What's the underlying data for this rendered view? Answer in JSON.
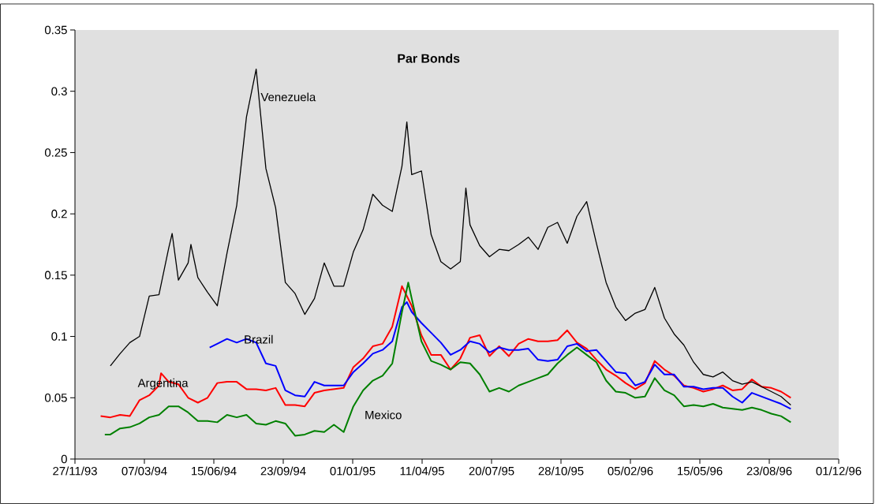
{
  "chart_data": {
    "type": "line",
    "title": "Par Bonds",
    "line_style": "solid",
    "xlim": [
      "1993-11-27",
      "1996-12-01"
    ],
    "xticks": [
      {
        "value": "1993-11-27",
        "label": "27/11/93"
      },
      {
        "value": "1994-03-07",
        "label": "07/03/94"
      },
      {
        "value": "1994-06-15",
        "label": "15/06/94"
      },
      {
        "value": "1994-09-23",
        "label": "23/09/94"
      },
      {
        "value": "1995-01-01",
        "label": "01/01/95"
      },
      {
        "value": "1995-04-11",
        "label": "11/04/95"
      },
      {
        "value": "1995-07-20",
        "label": "20/07/95"
      },
      {
        "value": "1995-10-28",
        "label": "28/10/95"
      },
      {
        "value": "1996-02-05",
        "label": "05/02/96"
      },
      {
        "value": "1996-05-15",
        "label": "15/05/96"
      },
      {
        "value": "1996-08-23",
        "label": "23/08/96"
      },
      {
        "value": "1996-12-01",
        "label": "01/12/96"
      }
    ],
    "ylim": [
      0,
      0.35
    ],
    "yticks": [
      0,
      0.05,
      0.1,
      0.15,
      0.2,
      0.25,
      0.3,
      0.35
    ],
    "series": [
      {
        "name": "Argentina",
        "color": "#ff0000",
        "x": [
          "1994-01-03",
          "1994-01-17",
          "1994-01-31",
          "1994-02-14",
          "1994-02-28",
          "1994-03-14",
          "1994-03-28",
          "1994-03-31",
          "1994-04-11",
          "1994-04-25",
          "1994-05-09",
          "1994-05-23",
          "1994-06-06",
          "1994-06-20",
          "1994-07-04",
          "1994-07-18",
          "1994-08-01",
          "1994-08-15",
          "1994-08-29",
          "1994-09-12",
          "1994-09-26",
          "1994-10-10",
          "1994-10-24",
          "1994-11-07",
          "1994-11-21",
          "1994-12-05",
          "1994-12-19",
          "1995-01-02",
          "1995-01-16",
          "1995-01-30",
          "1995-02-13",
          "1995-02-27",
          "1995-03-13",
          "1995-03-27",
          "1995-04-10",
          "1995-04-24",
          "1995-05-08",
          "1995-05-22",
          "1995-06-05",
          "1995-06-19",
          "1995-07-03",
          "1995-07-17",
          "1995-07-31",
          "1995-08-14",
          "1995-08-28",
          "1995-09-11",
          "1995-09-25",
          "1995-10-09",
          "1995-10-23",
          "1995-11-06",
          "1995-11-20",
          "1995-12-04",
          "1995-12-18",
          "1996-01-01",
          "1996-01-15",
          "1996-01-29",
          "1996-02-12",
          "1996-02-26",
          "1996-03-11",
          "1996-03-25",
          "1996-04-08",
          "1996-04-22",
          "1996-05-06",
          "1996-05-20",
          "1996-06-03",
          "1996-06-17",
          "1996-07-01",
          "1996-07-15",
          "1996-07-29",
          "1996-08-12",
          "1996-08-26",
          "1996-09-09",
          "1996-09-23"
        ],
        "values": [
          0.035,
          0.034,
          0.036,
          0.035,
          0.048,
          0.052,
          0.06,
          0.07,
          0.063,
          0.061,
          0.05,
          0.046,
          0.05,
          0.062,
          0.063,
          0.063,
          0.057,
          0.057,
          0.056,
          0.058,
          0.044,
          0.044,
          0.043,
          0.054,
          0.056,
          0.057,
          0.058,
          0.075,
          0.082,
          0.092,
          0.094,
          0.108,
          0.141,
          0.125,
          0.101,
          0.085,
          0.085,
          0.073,
          0.082,
          0.099,
          0.101,
          0.084,
          0.092,
          0.084,
          0.094,
          0.098,
          0.096,
          0.096,
          0.097,
          0.105,
          0.095,
          0.09,
          0.081,
          0.073,
          0.068,
          0.062,
          0.057,
          0.062,
          0.08,
          0.073,
          0.068,
          0.06,
          0.058,
          0.055,
          0.057,
          0.06,
          0.056,
          0.057,
          0.065,
          0.059,
          0.058,
          0.055,
          0.05
        ]
      },
      {
        "name": "Brazil",
        "color": "#0000ff",
        "x": [
          "1994-06-09",
          "1994-06-20",
          "1994-07-04",
          "1994-07-18",
          "1994-08-01",
          "1994-08-15",
          "1994-08-29",
          "1994-09-12",
          "1994-09-26",
          "1994-10-10",
          "1994-10-24",
          "1994-11-07",
          "1994-11-21",
          "1994-12-05",
          "1994-12-19",
          "1995-01-02",
          "1995-01-16",
          "1995-01-30",
          "1995-02-13",
          "1995-02-27",
          "1995-03-13",
          "1995-03-20",
          "1995-03-27",
          "1995-04-10",
          "1995-04-24",
          "1995-05-08",
          "1995-05-22",
          "1995-06-05",
          "1995-06-19",
          "1995-07-03",
          "1995-07-17",
          "1995-07-31",
          "1995-08-14",
          "1995-08-28",
          "1995-09-11",
          "1995-09-25",
          "1995-10-09",
          "1995-10-23",
          "1995-11-06",
          "1995-11-20",
          "1995-12-04",
          "1995-12-18",
          "1996-01-01",
          "1996-01-15",
          "1996-01-29",
          "1996-02-12",
          "1996-02-26",
          "1996-03-11",
          "1996-03-25",
          "1996-04-08",
          "1996-04-22",
          "1996-05-06",
          "1996-05-20",
          "1996-06-03",
          "1996-06-17",
          "1996-07-01",
          "1996-07-15",
          "1996-07-29",
          "1996-08-12",
          "1996-08-26",
          "1996-09-09",
          "1996-09-23"
        ],
        "values": [
          0.091,
          0.094,
          0.098,
          0.095,
          0.098,
          0.095,
          0.078,
          0.076,
          0.056,
          0.052,
          0.051,
          0.063,
          0.06,
          0.06,
          0.06,
          0.071,
          0.078,
          0.086,
          0.089,
          0.096,
          0.124,
          0.128,
          0.12,
          0.111,
          0.103,
          0.095,
          0.085,
          0.089,
          0.096,
          0.094,
          0.087,
          0.091,
          0.089,
          0.089,
          0.09,
          0.081,
          0.08,
          0.081,
          0.092,
          0.094,
          0.088,
          0.089,
          0.08,
          0.071,
          0.07,
          0.06,
          0.063,
          0.077,
          0.069,
          0.069,
          0.059,
          0.059,
          0.057,
          0.058,
          0.058,
          0.051,
          0.046,
          0.054,
          0.051,
          0.048,
          0.045,
          0.041
        ]
      },
      {
        "name": "Mexico",
        "color": "#008000",
        "x": [
          "1994-01-09",
          "1994-01-17",
          "1994-01-31",
          "1994-02-14",
          "1994-02-28",
          "1994-03-14",
          "1994-03-28",
          "1994-04-11",
          "1994-04-25",
          "1994-05-09",
          "1994-05-23",
          "1994-06-06",
          "1994-06-20",
          "1994-07-04",
          "1994-07-18",
          "1994-08-01",
          "1994-08-15",
          "1994-08-29",
          "1994-09-12",
          "1994-09-26",
          "1994-10-10",
          "1994-10-24",
          "1994-11-07",
          "1994-11-21",
          "1994-12-05",
          "1994-12-19",
          "1995-01-02",
          "1995-01-16",
          "1995-01-30",
          "1995-02-13",
          "1995-02-27",
          "1995-03-13",
          "1995-03-22",
          "1995-03-27",
          "1995-04-10",
          "1995-04-24",
          "1995-05-08",
          "1995-05-22",
          "1995-06-05",
          "1995-06-19",
          "1995-07-03",
          "1995-07-17",
          "1995-07-31",
          "1995-08-14",
          "1995-08-28",
          "1995-09-11",
          "1995-09-25",
          "1995-10-09",
          "1995-10-23",
          "1995-11-06",
          "1995-11-20",
          "1995-12-04",
          "1995-12-18",
          "1996-01-01",
          "1996-01-15",
          "1996-01-29",
          "1996-02-12",
          "1996-02-26",
          "1996-03-11",
          "1996-03-25",
          "1996-04-08",
          "1996-04-22",
          "1996-05-06",
          "1996-05-20",
          "1996-06-03",
          "1996-06-17",
          "1996-07-01",
          "1996-07-15",
          "1996-07-29",
          "1996-08-12",
          "1996-08-26",
          "1996-09-09",
          "1996-09-23"
        ],
        "values": [
          0.02,
          0.02,
          0.025,
          0.026,
          0.029,
          0.034,
          0.036,
          0.043,
          0.043,
          0.038,
          0.031,
          0.031,
          0.03,
          0.036,
          0.034,
          0.036,
          0.029,
          0.028,
          0.031,
          0.029,
          0.019,
          0.02,
          0.023,
          0.022,
          0.028,
          0.022,
          0.043,
          0.056,
          0.064,
          0.068,
          0.078,
          0.12,
          0.144,
          0.131,
          0.096,
          0.08,
          0.077,
          0.073,
          0.079,
          0.078,
          0.069,
          0.055,
          0.058,
          0.055,
          0.06,
          0.063,
          0.066,
          0.069,
          0.078,
          0.085,
          0.091,
          0.085,
          0.079,
          0.064,
          0.055,
          0.054,
          0.05,
          0.051,
          0.066,
          0.056,
          0.052,
          0.043,
          0.044,
          0.043,
          0.045,
          0.042,
          0.041,
          0.04,
          0.042,
          0.04,
          0.037,
          0.035,
          0.03
        ]
      },
      {
        "name": "Venezuela",
        "color": "#000000",
        "x": [
          "1994-01-17",
          "1994-01-31",
          "1994-02-14",
          "1994-02-28",
          "1994-03-14",
          "1994-03-28",
          "1994-04-11",
          "1994-04-16",
          "1994-04-25",
          "1994-05-09",
          "1994-05-13",
          "1994-05-23",
          "1994-06-06",
          "1994-06-20",
          "1994-07-04",
          "1994-07-18",
          "1994-08-01",
          "1994-08-15",
          "1994-08-29",
          "1994-09-12",
          "1994-09-26",
          "1994-10-10",
          "1994-10-24",
          "1994-11-07",
          "1994-11-21",
          "1994-12-05",
          "1994-12-19",
          "1995-01-02",
          "1995-01-16",
          "1995-01-30",
          "1995-02-13",
          "1995-02-27",
          "1995-03-13",
          "1995-03-20",
          "1995-03-27",
          "1995-04-10",
          "1995-04-24",
          "1995-05-08",
          "1995-05-22",
          "1995-06-05",
          "1995-06-13",
          "1995-06-19",
          "1995-07-03",
          "1995-07-17",
          "1995-07-31",
          "1995-08-14",
          "1995-08-28",
          "1995-09-11",
          "1995-09-25",
          "1995-10-09",
          "1995-10-23",
          "1995-11-06",
          "1995-11-20",
          "1995-12-04",
          "1995-12-18",
          "1996-01-01",
          "1996-01-15",
          "1996-01-29",
          "1996-02-12",
          "1996-02-26",
          "1996-03-11",
          "1996-03-25",
          "1996-04-08",
          "1996-04-22",
          "1996-05-06",
          "1996-05-20",
          "1996-06-03",
          "1996-06-17",
          "1996-07-01",
          "1996-07-15",
          "1996-07-29",
          "1996-08-12",
          "1996-08-26",
          "1996-09-09",
          "1996-09-23"
        ],
        "values": [
          0.076,
          0.086,
          0.095,
          0.1,
          0.133,
          0.134,
          0.172,
          0.184,
          0.146,
          0.16,
          0.175,
          0.148,
          0.136,
          0.125,
          0.168,
          0.207,
          0.279,
          0.318,
          0.237,
          0.205,
          0.144,
          0.135,
          0.118,
          0.131,
          0.16,
          0.141,
          0.141,
          0.169,
          0.187,
          0.216,
          0.207,
          0.202,
          0.239,
          0.275,
          0.232,
          0.235,
          0.183,
          0.161,
          0.155,
          0.161,
          0.221,
          0.191,
          0.174,
          0.165,
          0.171,
          0.17,
          0.175,
          0.181,
          0.171,
          0.189,
          0.193,
          0.176,
          0.198,
          0.21,
          0.176,
          0.144,
          0.124,
          0.113,
          0.119,
          0.122,
          0.14,
          0.115,
          0.102,
          0.093,
          0.079,
          0.069,
          0.067,
          0.071,
          0.064,
          0.061,
          0.063,
          0.059,
          0.055,
          0.051,
          0.044
        ]
      }
    ]
  }
}
